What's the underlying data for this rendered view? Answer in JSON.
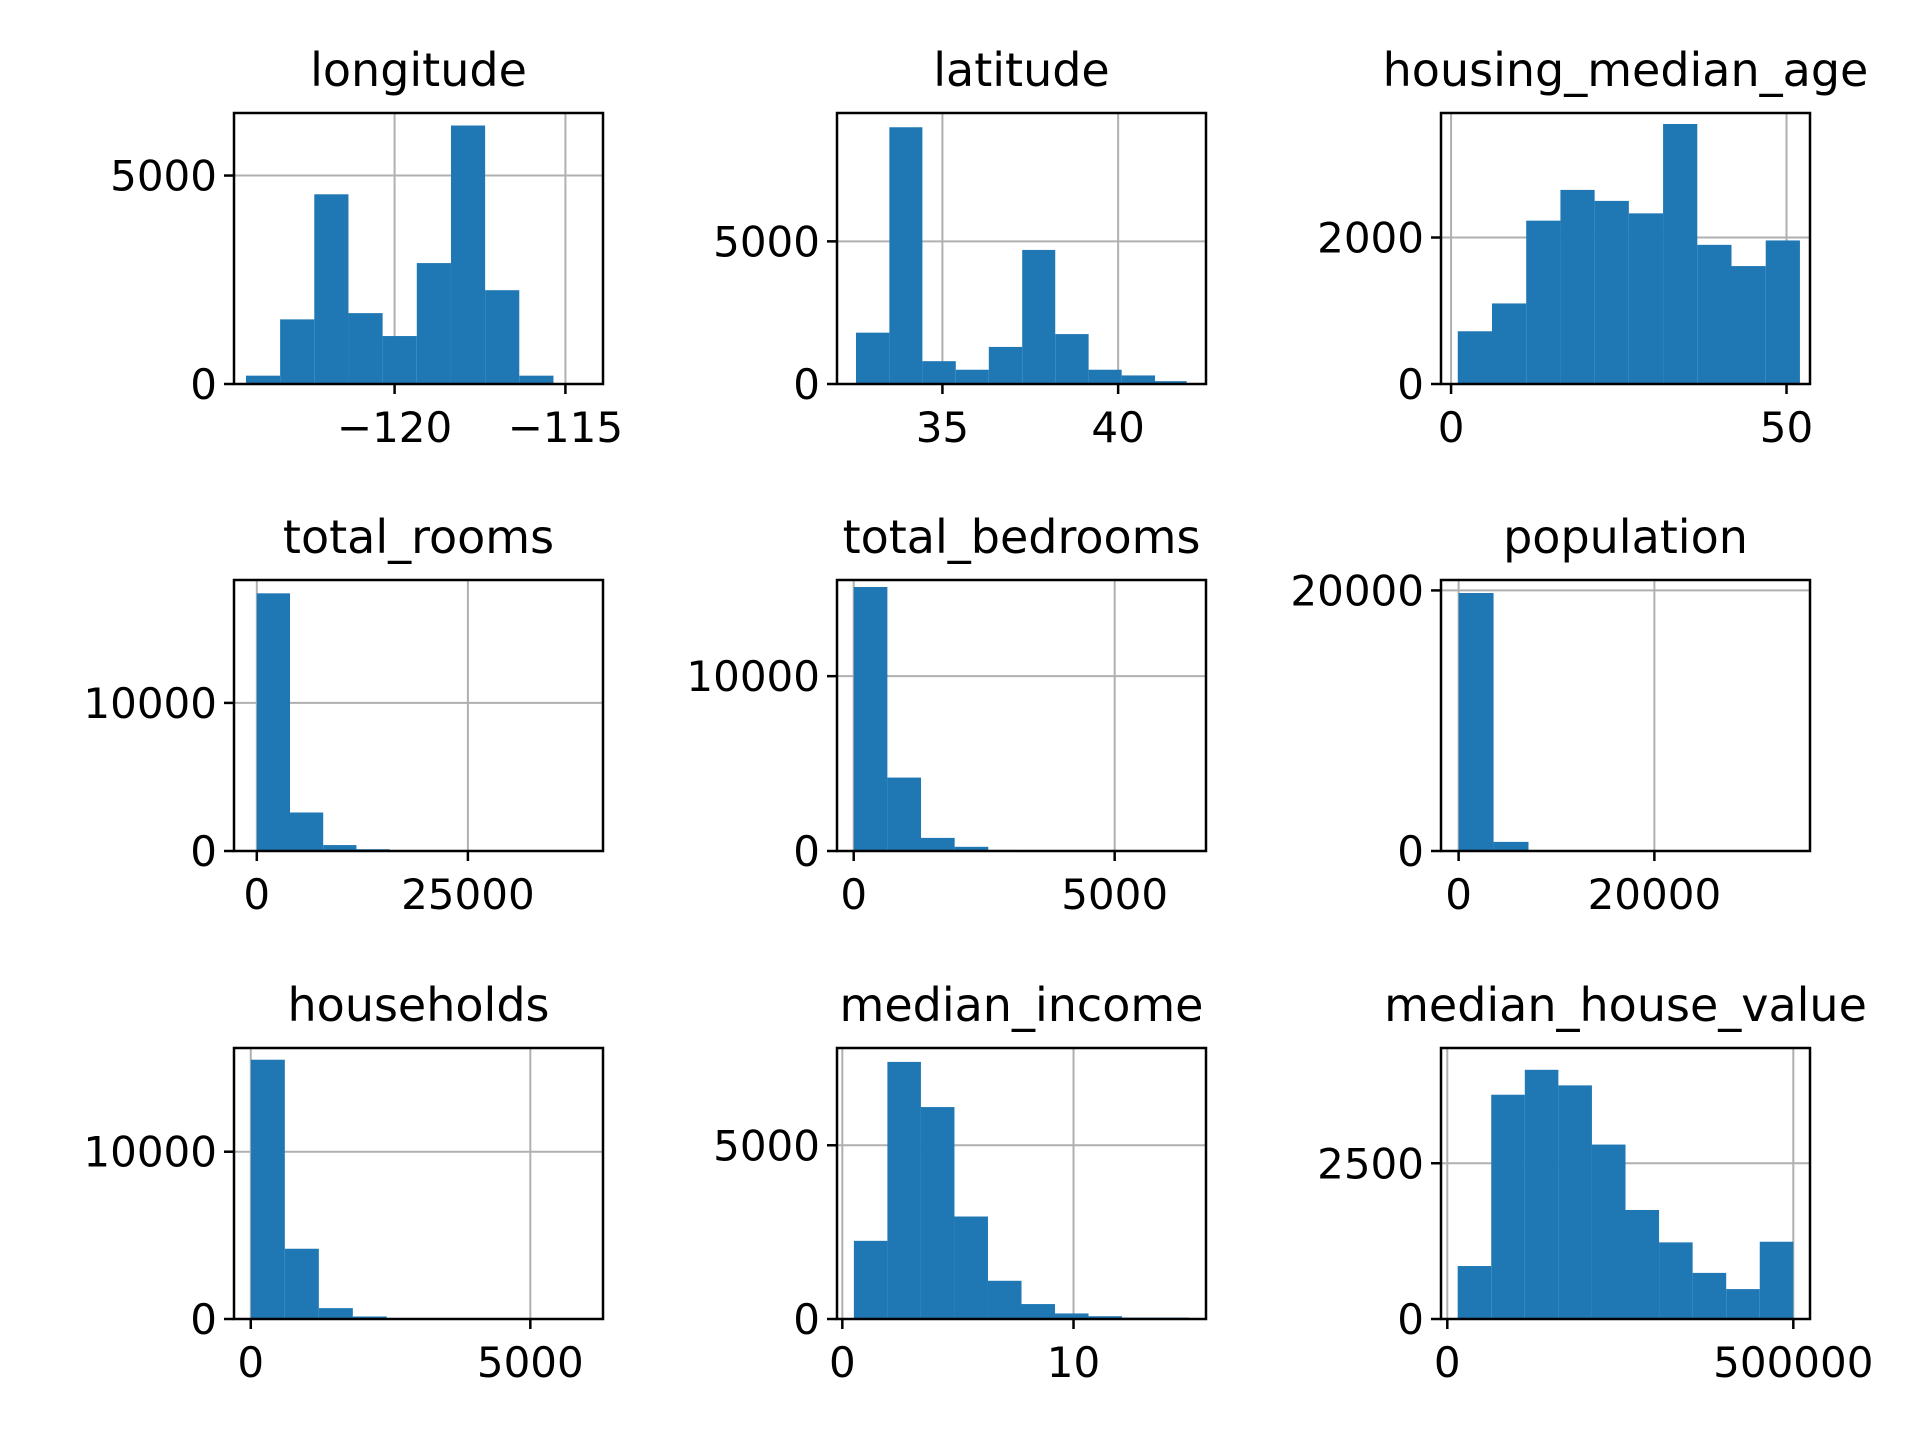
{
  "chart_data": [
    {
      "type": "bar",
      "title": "longitude",
      "xlim": [
        -124.7,
        -113.9
      ],
      "ylim": [
        0,
        6500
      ],
      "bin_edges": [
        -124.35,
        -123.35,
        -122.35,
        -121.35,
        -120.35,
        -119.35,
        -118.35,
        -117.35,
        -116.35,
        -115.35,
        -114.35
      ],
      "values": [
        200,
        1550,
        4550,
        1700,
        1150,
        2900,
        6200,
        2250,
        200,
        20
      ],
      "xticks": [
        -120,
        -115
      ],
      "xtick_labels": [
        "−120",
        "−115"
      ],
      "yticks": [
        0,
        5000
      ],
      "ytick_labels": [
        "0",
        "5000"
      ]
    },
    {
      "type": "bar",
      "title": "latitude",
      "xlim": [
        32.0,
        42.5
      ],
      "ylim": [
        0,
        9500
      ],
      "bin_edges": [
        32.54,
        33.49,
        34.43,
        35.38,
        36.32,
        37.27,
        38.21,
        39.16,
        40.1,
        41.05,
        41.95
      ],
      "values": [
        1800,
        9000,
        800,
        500,
        1300,
        4700,
        1750,
        500,
        300,
        100
      ],
      "xticks": [
        35,
        40
      ],
      "xtick_labels": [
        "35",
        "40"
      ],
      "yticks": [
        0,
        5000
      ],
      "ytick_labels": [
        "0",
        "5000"
      ]
    },
    {
      "type": "bar",
      "title": "housing_median_age",
      "xlim": [
        -1.5,
        53.5
      ],
      "ylim": [
        0,
        3700
      ],
      "bin_edges": [
        1,
        6.1,
        11.2,
        16.3,
        21.4,
        26.5,
        31.6,
        36.7,
        41.8,
        46.9,
        52
      ],
      "values": [
        720,
        1100,
        2230,
        2650,
        2500,
        2330,
        3550,
        1900,
        1610,
        1960
      ],
      "xticks": [
        0,
        50
      ],
      "xtick_labels": [
        "0",
        "50"
      ],
      "yticks": [
        0,
        2000
      ],
      "ytick_labels": [
        "0",
        "2000"
      ]
    },
    {
      "type": "bar",
      "title": "total_rooms",
      "xlim": [
        -2700,
        41000
      ],
      "ylim": [
        0,
        18300
      ],
      "bin_edges": [
        2,
        3934,
        7866,
        11798,
        15730,
        19662,
        23594,
        27526,
        31458,
        35390,
        39320
      ],
      "values": [
        17400,
        2600,
        400,
        120,
        40,
        10,
        5,
        5,
        5,
        5
      ],
      "xticks": [
        0,
        25000
      ],
      "xtick_labels": [
        "0",
        "25000"
      ],
      "yticks": [
        0,
        10000
      ],
      "ytick_labels": [
        "0",
        "10000"
      ]
    },
    {
      "type": "bar",
      "title": "total_bedrooms",
      "xlim": [
        -320,
        6750
      ],
      "ylim": [
        0,
        15500
      ],
      "bin_edges": [
        1,
        645.4,
        1289.8,
        1934.2,
        2578.6,
        3223,
        3867.4,
        4511.8,
        5156.2,
        5800.6,
        6445
      ],
      "values": [
        15100,
        4200,
        750,
        240,
        60,
        20,
        10,
        5,
        5,
        5
      ],
      "xticks": [
        0,
        5000
      ],
      "xtick_labels": [
        "0",
        "5000"
      ],
      "yticks": [
        0,
        10000
      ],
      "ytick_labels": [
        "0",
        "10000"
      ]
    },
    {
      "type": "bar",
      "title": "population",
      "xlim": [
        -1800,
        35900
      ],
      "ylim": [
        0,
        20800
      ],
      "bin_edges": [
        3,
        3571,
        7139,
        10707,
        14275,
        17843,
        21411,
        24979,
        28547,
        32115,
        35682
      ],
      "values": [
        19800,
        700,
        50,
        10,
        5,
        3,
        3,
        3,
        3,
        3
      ],
      "xticks": [
        0,
        20000
      ],
      "xtick_labels": [
        "0",
        "20000"
      ],
      "yticks": [
        0,
        20000
      ],
      "ytick_labels": [
        "0",
        "20000"
      ]
    },
    {
      "type": "bar",
      "title": "households",
      "xlim": [
        -300,
        6300
      ],
      "ylim": [
        0,
        16200
      ],
      "bin_edges": [
        1,
        609.1,
        1217.2,
        1825.3,
        2433.4,
        3041.5,
        3649.6,
        4257.7,
        4865.8,
        5473.9,
        6082
      ],
      "values": [
        15500,
        4200,
        650,
        150,
        50,
        20,
        10,
        5,
        5,
        5
      ],
      "xticks": [
        0,
        5000
      ],
      "xtick_labels": [
        "0",
        "5000"
      ],
      "yticks": [
        0,
        10000
      ],
      "ytick_labels": [
        "0",
        "10000"
      ]
    },
    {
      "type": "bar",
      "title": "median_income",
      "xlim": [
        -0.23,
        15.73
      ],
      "ylim": [
        0,
        7800
      ],
      "bin_edges": [
        0.5,
        1.95,
        3.4,
        4.85,
        6.3,
        7.75,
        9.2,
        10.65,
        12.1,
        13.55,
        15
      ],
      "values": [
        2250,
        7400,
        6100,
        2950,
        1100,
        430,
        160,
        80,
        40,
        40
      ],
      "xticks": [
        0,
        10
      ],
      "xtick_labels": [
        "0",
        "10"
      ],
      "yticks": [
        0,
        5000
      ],
      "ytick_labels": [
        "0",
        "5000"
      ]
    },
    {
      "type": "bar",
      "title": "median_house_value",
      "xlim": [
        -9100,
        524100
      ],
      "ylim": [
        0,
        4350
      ],
      "bin_edges": [
        15000,
        63500,
        112000,
        160500,
        209000,
        257500,
        306000,
        354500,
        403000,
        451500,
        500001
      ],
      "values": [
        850,
        3600,
        4000,
        3750,
        2800,
        1750,
        1230,
        740,
        480,
        1240
      ],
      "xticks": [
        0,
        500000
      ],
      "xtick_labels": [
        "0",
        "500000"
      ],
      "yticks": [
        0,
        2500
      ],
      "ytick_labels": [
        "0",
        "2500"
      ]
    }
  ],
  "style": {
    "bar_color": "#1f77b4",
    "grid": true,
    "grid_color": "#b0b0b0",
    "frame_color": "#000000"
  }
}
